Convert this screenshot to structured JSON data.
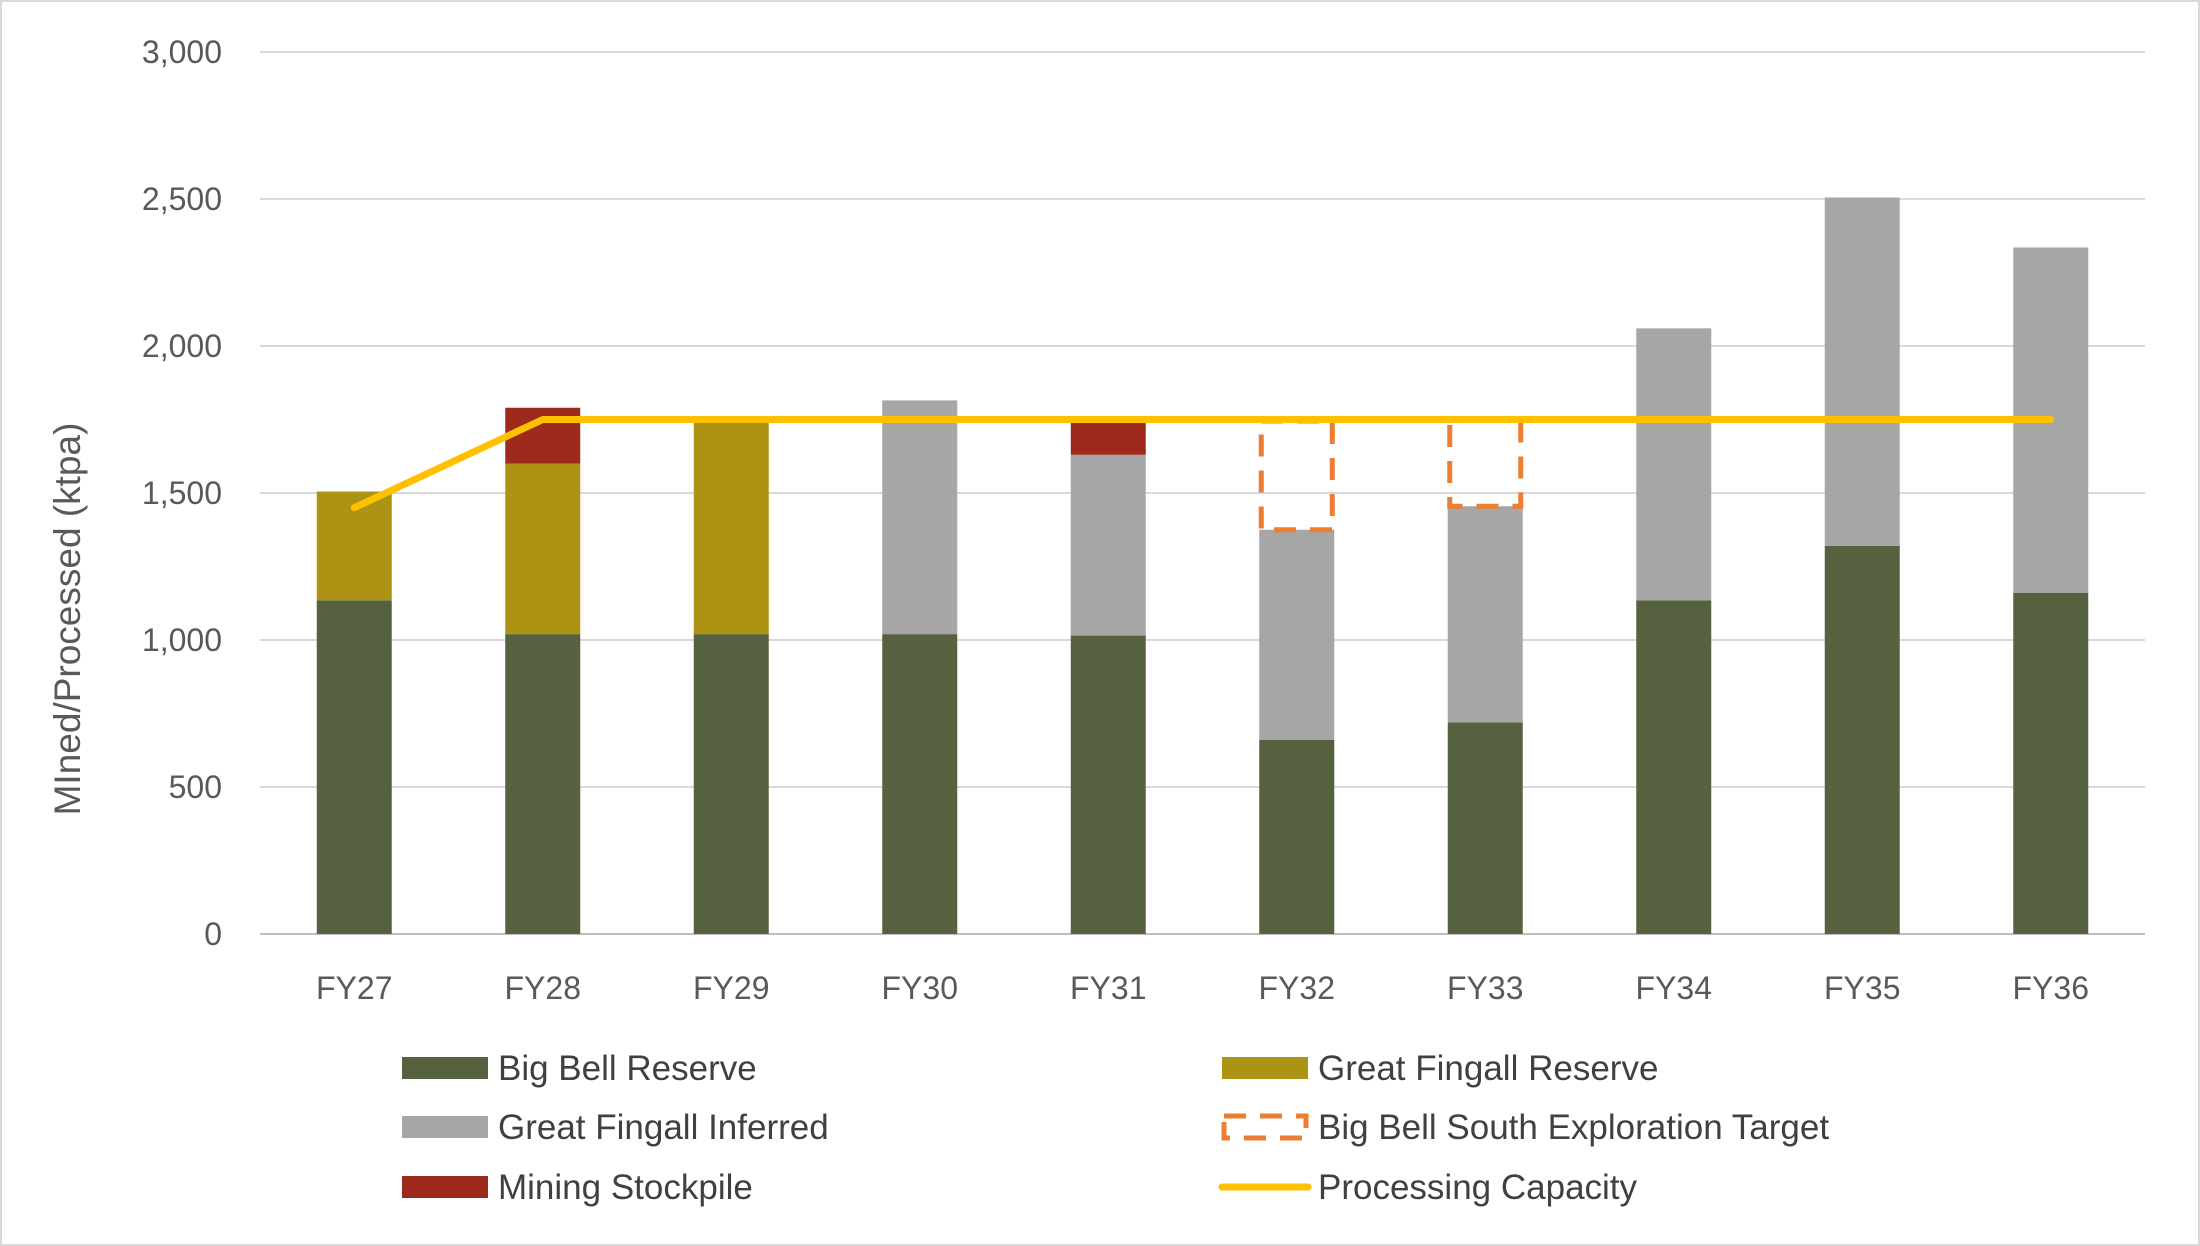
{
  "chart_data": {
    "type": "bar",
    "stacked": true,
    "categories": [
      "FY27",
      "FY28",
      "FY29",
      "FY30",
      "FY31",
      "FY32",
      "FY33",
      "FY34",
      "FY35",
      "FY36"
    ],
    "series": [
      {
        "name": "Big Bell Reserve",
        "kind": "bar",
        "color": "#56623F",
        "values": [
          1135,
          1020,
          1020,
          1020,
          1015,
          660,
          720,
          1135,
          1320,
          1160
        ]
      },
      {
        "name": "Great Fingall Reserve",
        "kind": "bar",
        "color": "#AD9314",
        "values": [
          370,
          580,
          730,
          0,
          0,
          0,
          0,
          0,
          0,
          0
        ]
      },
      {
        "name": "Great Fingall Inferred",
        "kind": "bar",
        "color": "#A6A6A6",
        "values": [
          0,
          0,
          0,
          795,
          615,
          715,
          735,
          925,
          1185,
          1175
        ]
      },
      {
        "name": "Mining Stockpile",
        "kind": "bar",
        "color": "#9E2A1E",
        "values": [
          0,
          190,
          0,
          0,
          120,
          0,
          0,
          0,
          0,
          0
        ]
      },
      {
        "name": "Big Bell South Exploration Target",
        "kind": "dashed-bar",
        "color": "#ED7D31",
        "values": [
          0,
          0,
          0,
          0,
          0,
          370,
          295,
          0,
          0,
          0
        ]
      },
      {
        "name": "Processing Capacity",
        "kind": "line",
        "color": "#FFC000",
        "values": [
          1450,
          1750,
          1750,
          1750,
          1750,
          1750,
          1750,
          1750,
          1750,
          1750
        ]
      }
    ],
    "ylabel": "MIned/Processed (ktpa)",
    "ylim": [
      0,
      3000
    ],
    "yticks": [
      "0",
      "500",
      "1,000",
      "1,500",
      "2,000",
      "2,500",
      "3,000"
    ],
    "grid": true,
    "legend_position": "bottom",
    "legend": [
      "Big Bell Reserve",
      "Great Fingall Reserve",
      "Great Fingall Inferred",
      "Big Bell South Exploration Target",
      "Mining Stockpile",
      "Processing Capacity"
    ]
  }
}
